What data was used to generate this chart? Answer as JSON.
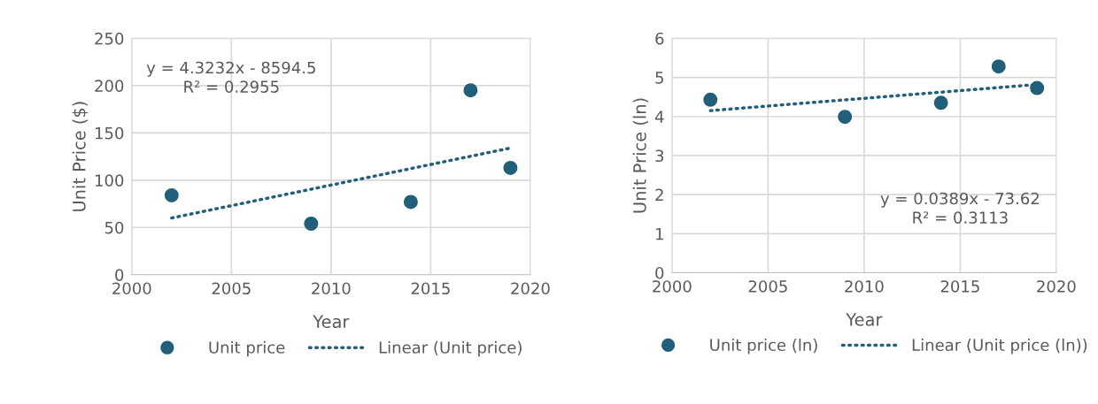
{
  "chart_data": [
    {
      "type": "scatter",
      "xlabel": "Year",
      "ylabel": "Unit Price ($)",
      "xlim": [
        2000,
        2020
      ],
      "xticks": [
        2000,
        2005,
        2010,
        2015,
        2020
      ],
      "ylim": [
        0,
        250
      ],
      "yticks": [
        0,
        50,
        100,
        150,
        200,
        250
      ],
      "grid": true,
      "legend": "bottom",
      "marker": "circle",
      "series": [
        {
          "name": "Unit price",
          "color": "#215f7a",
          "x": [
            2002,
            2009,
            2014,
            2017,
            2019
          ],
          "values": [
            84,
            54,
            77,
            195,
            113
          ]
        },
        {
          "name": "Linear (Unit price)",
          "type": "line",
          "line_style": "dotted",
          "marker": "none",
          "color": "#215f7a",
          "x": [
            2002,
            2019
          ],
          "values": [
            60,
            134
          ]
        }
      ],
      "annotations": [
        "y = 4.3232x - 8594.5\nR² = 0.2955"
      ]
    },
    {
      "type": "scatter",
      "xlabel": "Year",
      "ylabel": "Unit Price (ln)",
      "xlim": [
        2000,
        2020
      ],
      "xticks": [
        2000,
        2005,
        2010,
        2015,
        2020
      ],
      "ylim": [
        0,
        6
      ],
      "yticks": [
        0,
        1,
        2,
        3,
        4,
        5,
        6
      ],
      "grid": true,
      "legend": "bottom",
      "marker": "circle",
      "series": [
        {
          "name": "Unit price (ln)",
          "color": "#215f7a",
          "x": [
            2002,
            2009,
            2014,
            2017,
            2019
          ],
          "values": [
            4.43,
            3.99,
            4.35,
            5.28,
            4.73
          ]
        },
        {
          "name": "Linear (Unit price (ln))",
          "type": "line",
          "line_style": "dotted",
          "marker": "none",
          "color": "#215f7a",
          "x": [
            2002,
            2019
          ],
          "values": [
            4.15,
            4.82
          ]
        }
      ],
      "annotations": [
        "y = 0.0389x - 73.62\nR² = 0.3113"
      ]
    }
  ]
}
